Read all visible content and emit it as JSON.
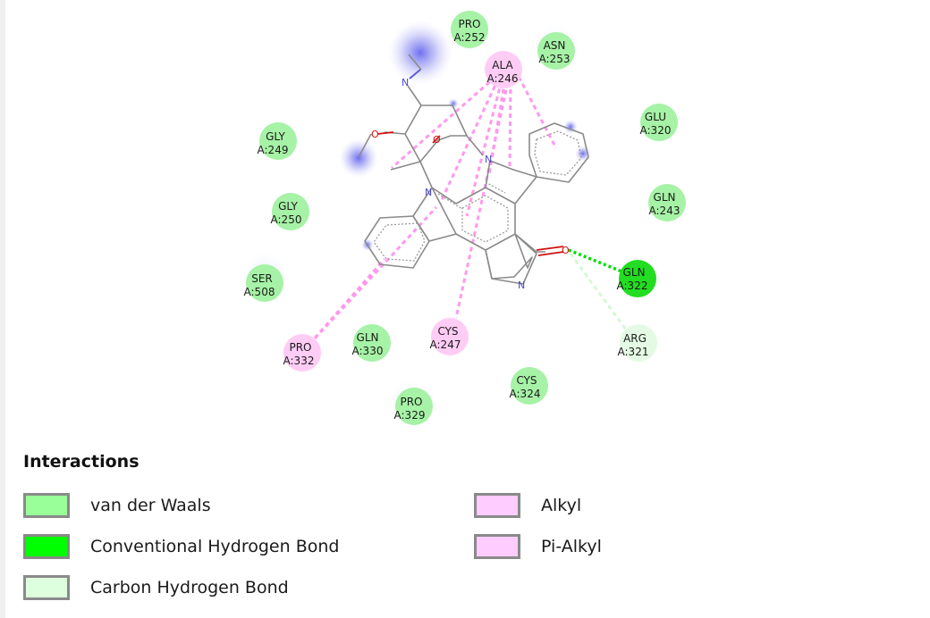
{
  "residues": [
    {
      "id": "pro252",
      "name": "PRO",
      "chain": "A:252",
      "type": "vdw"
    },
    {
      "id": "asn253",
      "name": "ASN",
      "chain": "A:253",
      "type": "vdw"
    },
    {
      "id": "ala246",
      "name": "ALA",
      "chain": "A:246",
      "type": "alkyl"
    },
    {
      "id": "glu320",
      "name": "GLU",
      "chain": "A:320",
      "type": "vdw"
    },
    {
      "id": "gly249",
      "name": "GLY",
      "chain": "A:249",
      "type": "vdw"
    },
    {
      "id": "gln243",
      "name": "GLN",
      "chain": "A:243",
      "type": "vdw"
    },
    {
      "id": "gly250",
      "name": "GLY",
      "chain": "A:250",
      "type": "vdw"
    },
    {
      "id": "gln322",
      "name": "GLN",
      "chain": "A:322",
      "type": "hbond"
    },
    {
      "id": "ser508",
      "name": "SER",
      "chain": "A:508",
      "type": "vdw"
    },
    {
      "id": "arg321",
      "name": "ARG",
      "chain": "A:321",
      "type": "chbond"
    },
    {
      "id": "pro332",
      "name": "PRO",
      "chain": "A:332",
      "type": "alkyl"
    },
    {
      "id": "gln330",
      "name": "GLN",
      "chain": "A:330",
      "type": "vdw"
    },
    {
      "id": "cys247",
      "name": "CYS",
      "chain": "A:247",
      "type": "alkyl"
    },
    {
      "id": "cys324",
      "name": "CYS",
      "chain": "A:324",
      "type": "vdw"
    },
    {
      "id": "pro329",
      "name": "PRO",
      "chain": "A:329",
      "type": "vdw"
    }
  ],
  "atoms": [
    {
      "id": "n-methylamine",
      "label": "N",
      "element": "N"
    },
    {
      "id": "o-methoxy",
      "label": "O",
      "element": "O"
    },
    {
      "id": "o-ring",
      "label": "O",
      "element": "O"
    },
    {
      "id": "n-indole-right",
      "label": "N",
      "element": "N"
    },
    {
      "id": "n-indole-left",
      "label": "N",
      "element": "N"
    },
    {
      "id": "o-carbonyl",
      "label": "O",
      "element": "O"
    },
    {
      "id": "n-lactam",
      "label": "N",
      "element": "N"
    }
  ],
  "legend": {
    "title": "Interactions",
    "items": [
      {
        "id": "vdw",
        "label": "van der Waals",
        "color": "#99ff99"
      },
      {
        "id": "hbond",
        "label": "Conventional Hydrogen Bond",
        "color": "#00ff00"
      },
      {
        "id": "chbond",
        "label": "Carbon Hydrogen Bond",
        "color": "#ddffdd"
      },
      {
        "id": "alkyl",
        "label": "Alkyl",
        "color": "#ffccff"
      },
      {
        "id": "pialkyl",
        "label": "Pi-Alkyl",
        "color": "#ffccff"
      }
    ]
  },
  "colors": {
    "vdw": "#a6f2a6",
    "hbond": "#22dd22",
    "chbond": "#e4fae4",
    "alkyl": "#ffccf5",
    "bond_line": "#888888",
    "hbond_line": "#00dd00",
    "alkyl_line": "#ff99ee"
  }
}
